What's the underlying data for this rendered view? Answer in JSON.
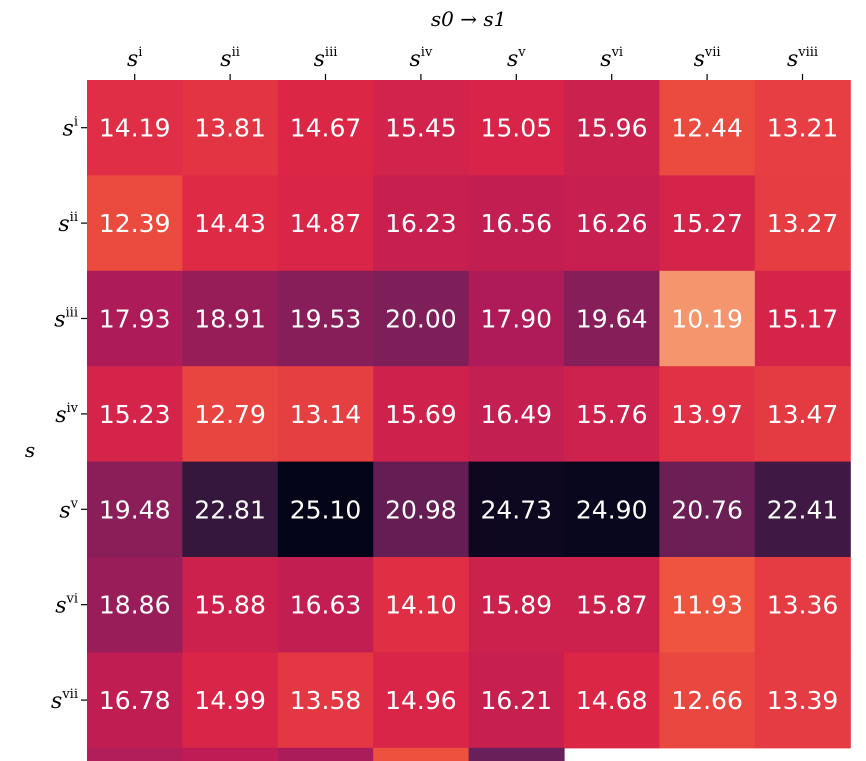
{
  "chart_data": {
    "type": "heatmap",
    "title": "",
    "xlabel": "s0 → s1",
    "ylabel": "s",
    "x_tick_prefix": "s",
    "y_tick_prefix": "s",
    "columns": [
      "i",
      "ii",
      "iii",
      "iv",
      "v",
      "vi",
      "vii",
      "viii"
    ],
    "rows": [
      "i",
      "ii",
      "iii",
      "iv",
      "v",
      "vi",
      "vii"
    ],
    "values": [
      [
        14.19,
        13.81,
        14.67,
        15.45,
        15.05,
        15.96,
        12.44,
        13.21
      ],
      [
        12.39,
        14.43,
        14.87,
        16.23,
        16.56,
        16.26,
        15.27,
        13.27
      ],
      [
        17.93,
        18.91,
        19.53,
        20.0,
        17.9,
        19.64,
        10.19,
        15.17
      ],
      [
        15.23,
        12.79,
        13.14,
        15.69,
        16.49,
        15.76,
        13.97,
        13.47
      ],
      [
        19.48,
        22.81,
        25.1,
        20.98,
        24.73,
        24.9,
        20.76,
        22.41
      ],
      [
        18.86,
        15.88,
        16.63,
        14.1,
        15.89,
        15.87,
        11.93,
        13.36
      ],
      [
        16.78,
        14.99,
        13.58,
        14.96,
        16.21,
        14.68,
        12.66,
        13.39
      ]
    ],
    "colormap": "rocket_r",
    "xaxis_position": "top",
    "grid": false,
    "colorbar": false
  }
}
